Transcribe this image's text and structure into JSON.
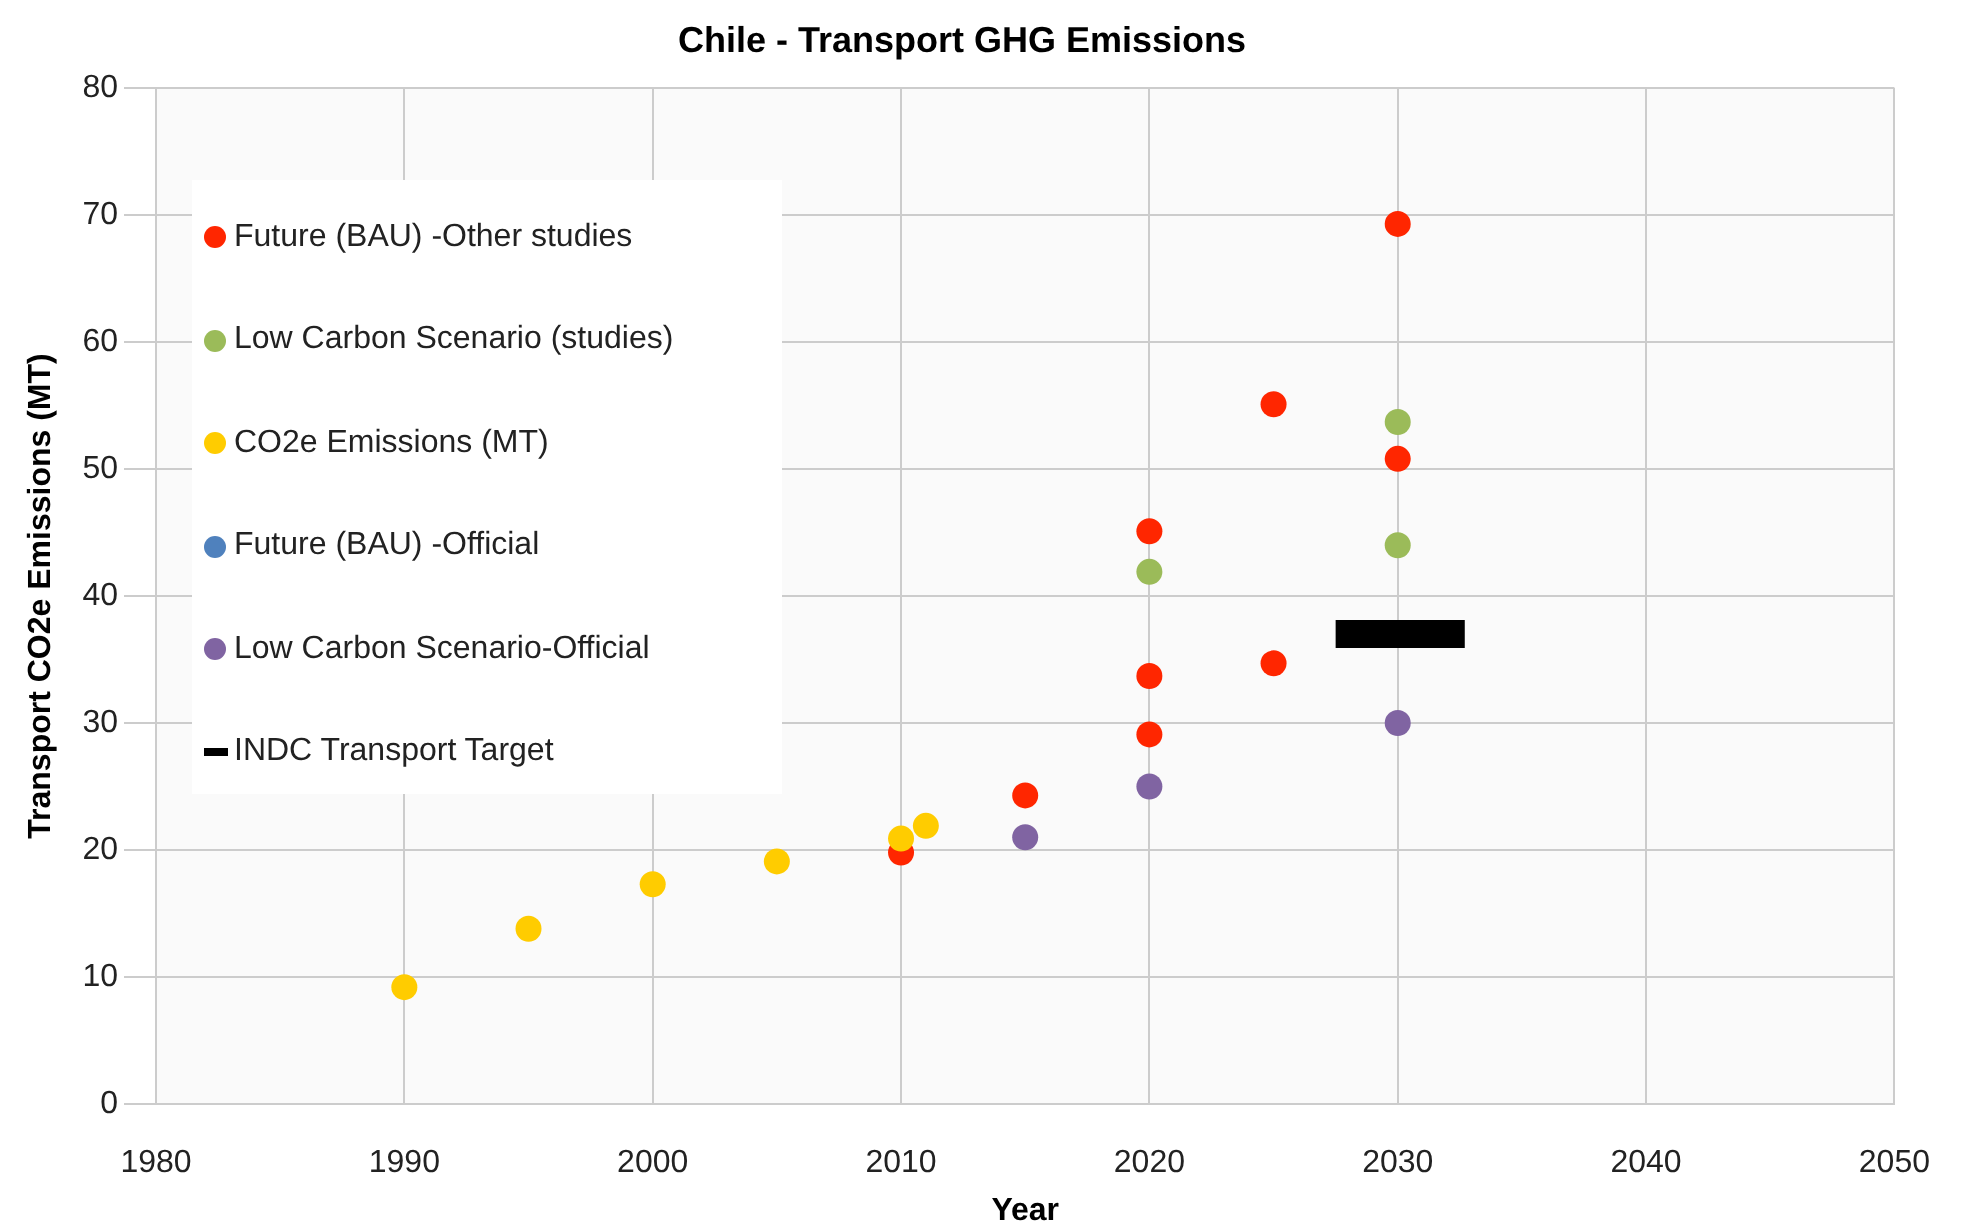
{
  "chart_data": {
    "type": "scatter",
    "title": "Chile - Transport GHG Emissions",
    "xlabel": "Year",
    "ylabel": "Transport CO2e Emissions (MT)",
    "xlim": [
      1980,
      2050
    ],
    "xticks": [
      1980,
      1990,
      2000,
      2010,
      2020,
      2030,
      2040,
      2050
    ],
    "ylim": [
      0,
      80
    ],
    "yticks": [
      0,
      10,
      20,
      30,
      40,
      50,
      60,
      70,
      80
    ],
    "grid": true,
    "legend": "top left",
    "marker": "circle",
    "series": [
      {
        "name": "Future (BAU) -Other studies",
        "color": "#ff2600",
        "x": [
          2010,
          2015,
          2020,
          2020,
          2020,
          2025,
          2025,
          2030,
          2030
        ],
        "values": [
          19.8,
          24.3,
          45.1,
          33.7,
          29.1,
          55.1,
          34.7,
          69.3,
          50.8
        ]
      },
      {
        "name": "Low Carbon Scenario (studies)",
        "color": "#9bbb59",
        "x": [
          2020,
          2030,
          2030
        ],
        "values": [
          41.9,
          53.7,
          44.0
        ]
      },
      {
        "name": "CO2e Emissions (MT)",
        "color": "#ffcc00",
        "x": [
          1990,
          1995,
          2000,
          2005,
          2010,
          2011
        ],
        "values": [
          9.2,
          13.8,
          17.3,
          19.1,
          20.9,
          21.9
        ]
      },
      {
        "name": "Future (BAU) -Official",
        "color": "#4f81bd"
      },
      {
        "name": "Low Carbon Scenario-Official",
        "color": "#8064a2",
        "x": [
          2015,
          2020,
          2030
        ],
        "values": [
          21.0,
          25.0,
          30.0
        ]
      },
      {
        "name": "INDC Transport Target",
        "type": "line",
        "color": "#000000",
        "marker": "none",
        "line_style": "solid",
        "x": [
          2027.5,
          2032.7
        ],
        "values": [
          37,
          37
        ]
      }
    ]
  }
}
